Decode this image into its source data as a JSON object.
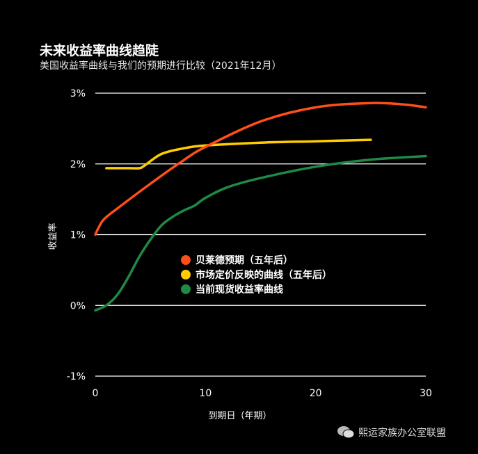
{
  "chart_data": {
    "type": "line",
    "title": "未来收益率曲线趋陡",
    "subtitle": "美国收益率曲线与我们的预期进行比较（2021年12月）",
    "xlabel": "到期日（年期）",
    "ylabel": "收益率",
    "xlim": [
      0,
      30
    ],
    "ylim": [
      -1,
      3
    ],
    "x_ticks": [
      {
        "v": 0,
        "label": "0"
      },
      {
        "v": 10,
        "label": "10"
      },
      {
        "v": 20,
        "label": "20"
      },
      {
        "v": 30,
        "label": "30"
      }
    ],
    "y_ticks": [
      {
        "v": 3,
        "label": "3%"
      },
      {
        "v": 2,
        "label": "2%"
      },
      {
        "v": 1,
        "label": "1%"
      },
      {
        "v": 0,
        "label": "0%"
      },
      {
        "v": -1,
        "label": "-1%"
      }
    ],
    "grid": true,
    "legend_position": "center",
    "series": [
      {
        "name": "贝莱德预期（五年后）",
        "color": "#ff4e1a",
        "points": [
          [
            0,
            1.0
          ],
          [
            0.3,
            1.1
          ],
          [
            0.8,
            1.22
          ],
          [
            2,
            1.37
          ],
          [
            5,
            1.72
          ],
          [
            8,
            2.05
          ],
          [
            10,
            2.24
          ],
          [
            15,
            2.6
          ],
          [
            20,
            2.8
          ],
          [
            25,
            2.86
          ],
          [
            28,
            2.84
          ],
          [
            30,
            2.8
          ]
        ]
      },
      {
        "name": "市场定价反映的曲线（五年后）",
        "color": "#ffcc00",
        "points": [
          [
            1,
            1.94
          ],
          [
            3,
            1.94
          ],
          [
            4,
            1.94
          ],
          [
            4.5,
            1.98
          ],
          [
            6,
            2.14
          ],
          [
            8,
            2.22
          ],
          [
            10,
            2.26
          ],
          [
            15,
            2.3
          ],
          [
            20,
            2.32
          ],
          [
            25,
            2.34
          ]
        ]
      },
      {
        "name": "当前现货收益率曲线",
        "color": "#1e8a45",
        "points": [
          [
            0,
            -0.07
          ],
          [
            1,
            0.0
          ],
          [
            2,
            0.15
          ],
          [
            3,
            0.4
          ],
          [
            4,
            0.69
          ],
          [
            5,
            0.93
          ],
          [
            6,
            1.13
          ],
          [
            7,
            1.25
          ],
          [
            8,
            1.34
          ],
          [
            9,
            1.41
          ],
          [
            10,
            1.52
          ],
          [
            12,
            1.67
          ],
          [
            15,
            1.8
          ],
          [
            20,
            1.96
          ],
          [
            25,
            2.06
          ],
          [
            30,
            2.11
          ]
        ]
      }
    ]
  },
  "watermark": "熙运家族办公室联盟"
}
